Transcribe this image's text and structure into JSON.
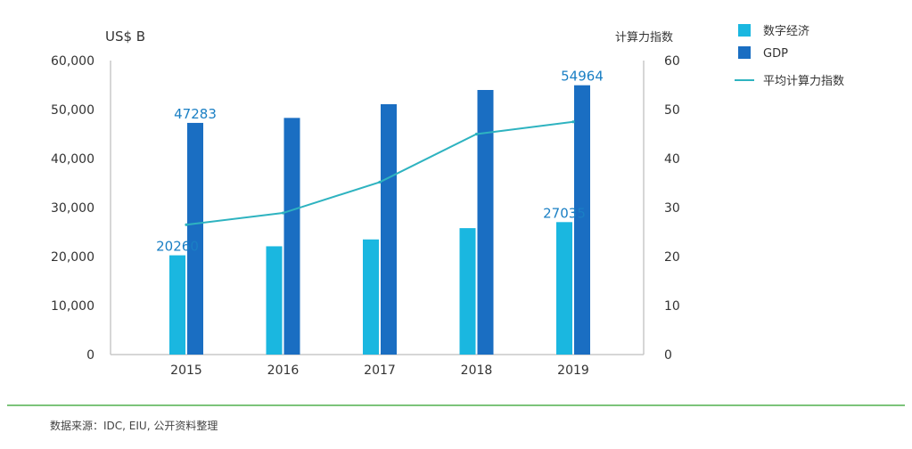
{
  "chart_data": {
    "type": "bar",
    "categories": [
      "2015",
      "2016",
      "2017",
      "2018",
      "2019"
    ],
    "series": [
      {
        "name": "数字经济",
        "kind": "bar",
        "axis": "left",
        "color": "#1ab7e0",
        "values": [
          20260,
          22100,
          23500,
          25800,
          27035
        ]
      },
      {
        "name": "GDP",
        "kind": "bar",
        "axis": "left",
        "color": "#1a6ec2",
        "values": [
          47283,
          48300,
          51100,
          54000,
          54964
        ]
      },
      {
        "name": "平均计算力指数",
        "kind": "line",
        "axis": "right",
        "color": "#2eb3c0",
        "values": [
          26.5,
          28.9,
          35.2,
          45.0,
          47.5
        ]
      }
    ],
    "data_labels": [
      {
        "series": 1,
        "index": 0,
        "text": "47283"
      },
      {
        "series": 0,
        "index": 0,
        "text": "20260"
      },
      {
        "series": 1,
        "index": 4,
        "text": "54964"
      },
      {
        "series": 0,
        "index": 4,
        "text": "27035"
      }
    ],
    "left_axis": {
      "title": "US$ B",
      "range": [
        0,
        60000
      ],
      "ticks": [
        {
          "value": 0,
          "label": "0"
        },
        {
          "value": 10000,
          "label": "10,000"
        },
        {
          "value": 20000,
          "label": "20,000"
        },
        {
          "value": 30000,
          "label": "30,000"
        },
        {
          "value": 40000,
          "label": "40,000"
        },
        {
          "value": 50000,
          "label": "50,000"
        },
        {
          "value": 60000,
          "label": "60,000"
        }
      ]
    },
    "right_axis": {
      "title": "计算力指数",
      "range": [
        0,
        60
      ],
      "ticks": [
        {
          "value": 0,
          "label": "0"
        },
        {
          "value": 10,
          "label": "10"
        },
        {
          "value": 20,
          "label": "20"
        },
        {
          "value": 30,
          "label": "30"
        },
        {
          "value": 40,
          "label": "40"
        },
        {
          "value": 50,
          "label": "50"
        },
        {
          "value": 60,
          "label": "60"
        }
      ]
    },
    "legend_position": "top-right",
    "grid": false
  },
  "source_note": "数据来源：IDC, EIU, 公开资料整理",
  "colors": {
    "axis": "#c8c8c8",
    "tick_text": "#333333",
    "label_text": "#1a7fc4",
    "rule": "#7cc47a"
  }
}
